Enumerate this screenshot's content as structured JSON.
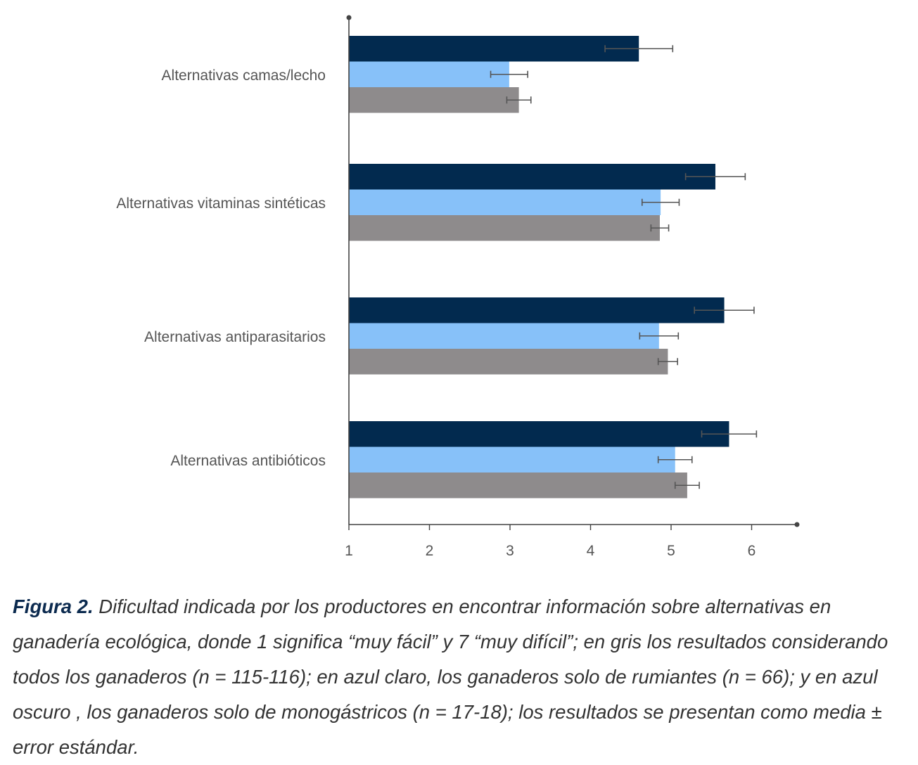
{
  "chart_data": {
    "type": "bar",
    "orientation": "horizontal",
    "categories": [
      "Alternativas camas/lecho",
      "Alternativas vitaminas sintéticas",
      "Alternativas antiparasitarios",
      "Alternativas antibióticos"
    ],
    "series": [
      {
        "values": [
          4.6,
          5.55,
          5.66,
          5.72
        ],
        "errors": [
          0.42,
          0.37,
          0.37,
          0.34
        ],
        "color": "#022a4f"
      },
      {
        "values": [
          2.99,
          4.87,
          4.85,
          5.05
        ],
        "errors": [
          0.23,
          0.23,
          0.24,
          0.21
        ],
        "color": "#87c1f9"
      },
      {
        "values": [
          3.11,
          4.86,
          4.96,
          5.2
        ],
        "errors": [
          0.15,
          0.11,
          0.12,
          0.15
        ],
        "color": "#8e8b8c"
      }
    ],
    "xticks": [
      "1",
      "2",
      "3",
      "4",
      "5",
      "6"
    ],
    "xlim": [
      1,
      6.6
    ],
    "grid": false,
    "legend": "none"
  },
  "caption": {
    "label": "Figura 2.",
    "text": "Dificultad indicada por los productores en encontrar información sobre alternativas en ganadería ecológica, donde 1 significa “muy fácil” y 7 “muy difícil”; en gris los resultados considerando todos los ganaderos (n = 115-116); en azul claro, los ganaderos solo de rumiantes (n = 66); y en azul oscuro , los ganaderos solo de monogástricos (n = 17-18); los resultados se presentan como media ± error estándar."
  }
}
